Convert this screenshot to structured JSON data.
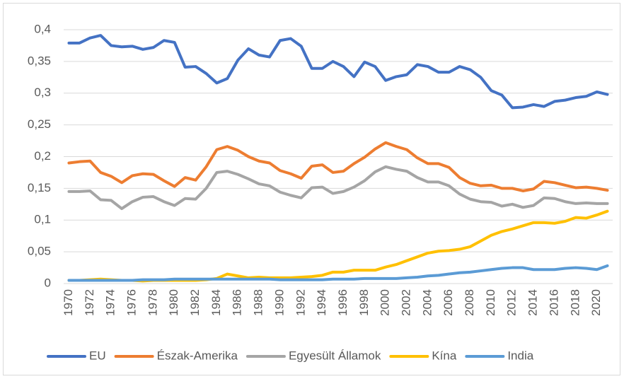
{
  "chart_data": {
    "type": "line",
    "categories": [
      1970,
      null,
      1972,
      null,
      1974,
      null,
      1976,
      null,
      1978,
      null,
      1980,
      null,
      1982,
      null,
      1984,
      null,
      1986,
      null,
      1988,
      null,
      1990,
      null,
      1992,
      null,
      1994,
      null,
      1996,
      null,
      1998,
      null,
      2000,
      null,
      2002,
      null,
      2004,
      null,
      2006,
      null,
      2008,
      null,
      2010,
      null,
      2012,
      null,
      2014,
      null,
      2016,
      null,
      2018,
      null,
      2020,
      null
    ],
    "series": [
      {
        "name": "EU",
        "color": "#4472c4",
        "values": [
          0.379,
          0.379,
          0.387,
          0.391,
          0.375,
          0.373,
          0.374,
          0.369,
          0.372,
          0.383,
          0.38,
          0.341,
          0.342,
          0.331,
          0.316,
          0.323,
          0.352,
          0.37,
          0.36,
          0.357,
          0.383,
          0.386,
          0.374,
          0.339,
          0.339,
          0.35,
          0.342,
          0.326,
          0.349,
          0.342,
          0.32,
          0.326,
          0.329,
          0.345,
          0.342,
          0.333,
          0.333,
          0.342,
          0.337,
          0.325,
          0.304,
          0.297,
          0.277,
          0.278,
          0.282,
          0.279,
          0.287,
          0.289,
          0.293,
          0.295,
          0.302,
          0.298
        ]
      },
      {
        "name": "Észak-Amerika",
        "color": "#ed7d31",
        "values": [
          0.19,
          0.192,
          0.193,
          0.175,
          0.169,
          0.159,
          0.17,
          0.173,
          0.172,
          0.162,
          0.153,
          0.167,
          0.163,
          0.184,
          0.211,
          0.216,
          0.21,
          0.2,
          0.193,
          0.19,
          0.178,
          0.173,
          0.166,
          0.185,
          0.187,
          0.175,
          0.177,
          0.189,
          0.199,
          0.212,
          0.222,
          0.216,
          0.211,
          0.198,
          0.189,
          0.189,
          0.183,
          0.167,
          0.158,
          0.154,
          0.155,
          0.15,
          0.15,
          0.146,
          0.149,
          0.161,
          0.159,
          0.155,
          0.151,
          0.152,
          0.15,
          0.147
        ]
      },
      {
        "name": "Egyesült Államok",
        "color": "#a5a5a5",
        "values": [
          0.145,
          0.145,
          0.146,
          0.132,
          0.131,
          0.118,
          0.129,
          0.136,
          0.137,
          0.129,
          0.123,
          0.134,
          0.133,
          0.15,
          0.175,
          0.177,
          0.172,
          0.165,
          0.157,
          0.154,
          0.144,
          0.139,
          0.135,
          0.151,
          0.152,
          0.142,
          0.145,
          0.152,
          0.162,
          0.176,
          0.184,
          0.18,
          0.177,
          0.167,
          0.16,
          0.16,
          0.154,
          0.141,
          0.133,
          0.129,
          0.128,
          0.122,
          0.125,
          0.12,
          0.123,
          0.135,
          0.134,
          0.129,
          0.126,
          0.127,
          0.126,
          0.126
        ]
      },
      {
        "name": "Kína",
        "color": "#ffc000",
        "values": [
          0.005,
          0.005,
          0.006,
          0.007,
          0.006,
          0.005,
          0.005,
          0.004,
          0.005,
          0.005,
          0.005,
          0.005,
          0.005,
          0.006,
          0.008,
          0.015,
          0.012,
          0.009,
          0.01,
          0.009,
          0.009,
          0.009,
          0.01,
          0.011,
          0.013,
          0.018,
          0.018,
          0.021,
          0.021,
          0.021,
          0.026,
          0.03,
          0.036,
          0.042,
          0.048,
          0.051,
          0.052,
          0.054,
          0.058,
          0.067,
          0.076,
          0.082,
          0.086,
          0.091,
          0.096,
          0.096,
          0.095,
          0.098,
          0.104,
          0.103,
          0.108,
          0.114
        ]
      },
      {
        "name": "India",
        "color": "#5b9bd5",
        "values": [
          0.005,
          0.005,
          0.005,
          0.005,
          0.005,
          0.005,
          0.005,
          0.006,
          0.006,
          0.006,
          0.007,
          0.007,
          0.007,
          0.007,
          0.007,
          0.007,
          0.007,
          0.007,
          0.007,
          0.007,
          0.006,
          0.006,
          0.006,
          0.006,
          0.006,
          0.007,
          0.007,
          0.007,
          0.008,
          0.008,
          0.008,
          0.008,
          0.009,
          0.01,
          0.012,
          0.013,
          0.015,
          0.017,
          0.018,
          0.02,
          0.022,
          0.024,
          0.025,
          0.025,
          0.022,
          0.022,
          0.022,
          0.024,
          0.025,
          0.024,
          0.022,
          0.028
        ]
      }
    ],
    "ylim": [
      0,
      0.4
    ],
    "yticks": [
      0,
      {
        "value": 0.05,
        "label": "0,05"
      },
      {
        "value": 0.1,
        "label": "0,1"
      },
      {
        "value": 0.15,
        "label": "0,15"
      },
      {
        "value": 0.2,
        "label": "0,2"
      },
      {
        "value": 0.25,
        "label": "0,25"
      },
      {
        "value": 0.3,
        "label": "0,3"
      },
      {
        "value": 0.35,
        "label": "0,35"
      },
      {
        "value": 0.4,
        "label": "0,4"
      }
    ],
    "grid": true,
    "legend": "bottom"
  }
}
